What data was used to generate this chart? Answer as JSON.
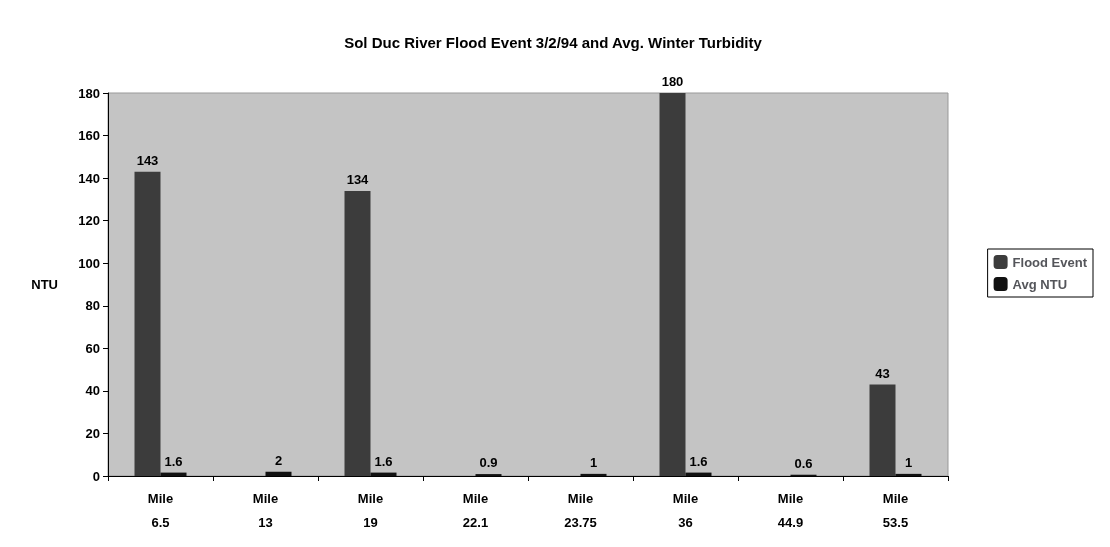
{
  "chart_data": {
    "type": "bar",
    "title": "Sol Duc River Flood Event 3/2/94 and Avg. Winter Turbidity",
    "ylabel": "NTU",
    "categories": [
      "Mile\n6.5",
      "Mile\n13",
      "Mile\n19",
      "Mile\n22.1",
      "Mile\n23.75",
      "Mile\n36",
      "Mile\n44.9",
      "Mile\n53.5"
    ],
    "series": [
      {
        "name": "Flood Event",
        "color": "#3c3c3c",
        "values": [
          143,
          null,
          134,
          null,
          null,
          180,
          null,
          43
        ]
      },
      {
        "name": "Avg NTU",
        "color": "#111111",
        "values": [
          1.6,
          2,
          1.6,
          0.9,
          1,
          1.6,
          0.6,
          1
        ]
      }
    ],
    "ylim": [
      0,
      180
    ],
    "yticks": [
      0,
      20,
      40,
      60,
      80,
      100,
      120,
      140,
      160,
      180
    ],
    "data_labels": true,
    "legend": "right"
  }
}
